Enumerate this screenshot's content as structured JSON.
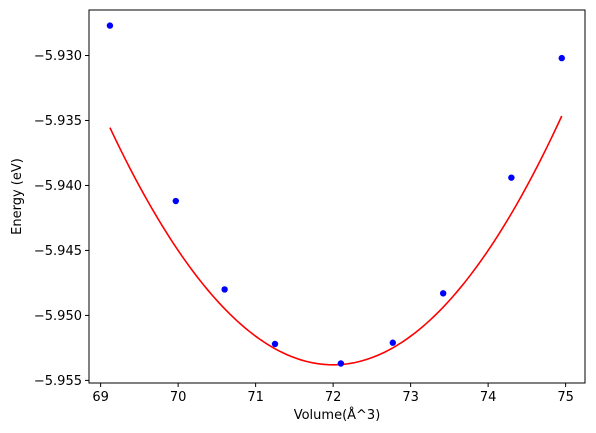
{
  "chart_data": {
    "type": "scatter",
    "title": "",
    "xlabel": "Volume(Å^3)",
    "ylabel": "Energy (eV)",
    "xlim": [
      68.85,
      75.25
    ],
    "ylim": [
      -5.9552,
      -5.9265
    ],
    "xticks": [
      69,
      70,
      71,
      72,
      73,
      74,
      75
    ],
    "yticks": [
      -5.93,
      -5.935,
      -5.94,
      -5.945,
      -5.95,
      -5.955
    ],
    "xtick_labels": [
      "69",
      "70",
      "71",
      "72",
      "73",
      "74",
      "75"
    ],
    "ytick_labels": [
      "−5.930",
      "−5.935",
      "−5.940",
      "−5.945",
      "−5.950",
      "−5.955"
    ],
    "grid": false,
    "series": [
      {
        "kind": "scatter",
        "color": "#0000ff",
        "x": [
          69.12,
          69.97,
          70.6,
          71.25,
          72.1,
          72.77,
          73.42,
          74.3,
          74.95
        ],
        "y": [
          -5.9277,
          -5.9412,
          -5.948,
          -5.9522,
          -5.9537,
          -5.9521,
          -5.9483,
          -5.9394,
          -5.9302
        ]
      },
      {
        "kind": "line",
        "color": "#ff0000",
        "fit": "quadratic",
        "x_min": 69.12,
        "x_max": 74.95,
        "vertex_x": 72.0,
        "vertex_y": -5.9538,
        "curvature": 0.0022
      }
    ]
  }
}
